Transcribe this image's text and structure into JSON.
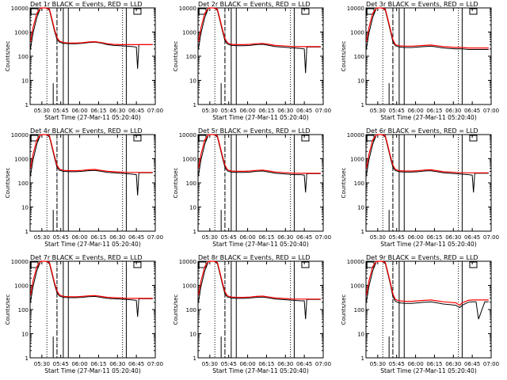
{
  "colors": {
    "events": "#000000",
    "lld": "#ff0000",
    "background": "#ffffff",
    "axes": "#000000"
  },
  "shared": {
    "xlabel": "Start Time (27-Mar-11 05:20:40)",
    "ylabel": "Counts/sec",
    "x_ticks": [
      "05:30",
      "05:45",
      "06:00",
      "06:15",
      "06:30",
      "06:45",
      "07:00"
    ],
    "y_ticks": [
      "1",
      "10",
      "100",
      "1000",
      "10000"
    ],
    "xlim": [
      "05:20:40",
      "07:00"
    ],
    "ylim": [
      1,
      10000
    ],
    "yscale": "log"
  },
  "chart_data": [
    {
      "type": "line",
      "title": "Det 1r BLACK = Events, RED = LLD",
      "x": [
        "05:21",
        "05:23",
        "05:26",
        "05:29",
        "05:33",
        "05:36",
        "05:38",
        "05:40",
        "05:42",
        "05:44",
        "05:47",
        "05:52",
        "05:57",
        "06:02",
        "06:07",
        "06:12",
        "06:17",
        "06:22",
        "06:27",
        "06:32",
        "06:37",
        "06:42",
        "06:45",
        "06:46",
        "06:47",
        "06:50",
        "06:55",
        "06:58"
      ],
      "series": [
        {
          "name": "Events",
          "color": "#000000",
          "values": [
            200,
            900,
            4000,
            10000,
            10000,
            8000,
            3000,
            1100,
            500,
            380,
            340,
            330,
            330,
            340,
            370,
            380,
            350,
            300,
            280,
            270,
            260,
            250,
            240,
            30,
            300,
            300,
            300,
            300
          ]
        },
        {
          "name": "LLD",
          "color": "#ff0000",
          "values": [
            400,
            1500,
            6000,
            10000,
            10000,
            9000,
            3500,
            1300,
            600,
            420,
            370,
            350,
            350,
            360,
            390,
            400,
            370,
            330,
            310,
            300,
            300,
            300,
            300,
            300,
            300,
            300,
            300,
            300
          ]
        }
      ],
      "dotted_x": [
        "05:34",
        "05:42",
        "06:34"
      ],
      "dashed_x": [
        "05:42"
      ],
      "solid_x": [
        "05:47",
        "05:51",
        "06:37"
      ],
      "dip_x": [
        "05:39"
      ]
    },
    {
      "type": "line",
      "title": "Det 2r BLACK = Events, RED = LLD",
      "x": [
        "05:21",
        "05:23",
        "05:26",
        "05:29",
        "05:33",
        "05:36",
        "05:38",
        "05:40",
        "05:42",
        "05:44",
        "05:47",
        "05:52",
        "05:57",
        "06:02",
        "06:07",
        "06:12",
        "06:17",
        "06:22",
        "06:27",
        "06:32",
        "06:37",
        "06:42",
        "06:45",
        "06:46",
        "06:47",
        "06:50",
        "06:55",
        "06:58"
      ],
      "series": [
        {
          "name": "Events",
          "color": "#000000",
          "values": [
            200,
            900,
            4000,
            10000,
            10000,
            8000,
            3000,
            1100,
            450,
            320,
            280,
            270,
            270,
            280,
            300,
            310,
            280,
            250,
            240,
            230,
            220,
            210,
            200,
            20,
            240,
            240,
            240,
            240
          ]
        },
        {
          "name": "LLD",
          "color": "#ff0000",
          "values": [
            400,
            1500,
            6000,
            10000,
            10000,
            9000,
            3500,
            1300,
            550,
            360,
            310,
            300,
            300,
            310,
            330,
            340,
            310,
            280,
            270,
            260,
            250,
            250,
            250,
            250,
            250,
            250,
            250,
            250
          ]
        }
      ],
      "dotted_x": [
        "05:34",
        "05:42",
        "06:34"
      ],
      "dashed_x": [
        "05:42"
      ],
      "solid_x": [
        "05:47",
        "05:51",
        "06:37"
      ],
      "dip_x": [
        "05:39"
      ]
    },
    {
      "type": "line",
      "title": "Det 3r BLACK = Events, RED = LLD",
      "x": [
        "05:21",
        "05:23",
        "05:26",
        "05:29",
        "05:33",
        "05:36",
        "05:38",
        "05:40",
        "05:42",
        "05:44",
        "05:47",
        "05:52",
        "05:57",
        "06:02",
        "06:07",
        "06:12",
        "06:17",
        "06:22",
        "06:27",
        "06:32",
        "06:37",
        "06:42",
        "06:45",
        "06:46",
        "06:47",
        "06:50",
        "06:55",
        "06:58"
      ],
      "series": [
        {
          "name": "Events",
          "color": "#000000",
          "values": [
            200,
            900,
            4000,
            10000,
            10000,
            8000,
            3000,
            1100,
            400,
            270,
            240,
            230,
            230,
            240,
            250,
            260,
            240,
            220,
            210,
            200,
            200,
            190,
            190,
            190,
            190,
            190,
            190,
            190
          ]
        },
        {
          "name": "LLD",
          "color": "#ff0000",
          "values": [
            400,
            1500,
            6000,
            10000,
            10000,
            9000,
            3500,
            1300,
            500,
            300,
            270,
            260,
            260,
            270,
            280,
            290,
            270,
            250,
            240,
            230,
            230,
            220,
            220,
            220,
            220,
            220,
            220,
            220
          ]
        }
      ],
      "dotted_x": [
        "05:34",
        "05:42",
        "06:34"
      ],
      "dashed_x": [
        "05:42"
      ],
      "solid_x": [
        "05:47",
        "05:51",
        "06:37"
      ],
      "dip_x": [
        "05:39"
      ]
    },
    {
      "type": "line",
      "title": "Det 4r BLACK = Events, RED = LLD",
      "x": [
        "05:21",
        "05:23",
        "05:26",
        "05:29",
        "05:33",
        "05:36",
        "05:38",
        "05:40",
        "05:42",
        "05:44",
        "05:47",
        "05:52",
        "05:57",
        "06:02",
        "06:07",
        "06:12",
        "06:17",
        "06:22",
        "06:27",
        "06:32",
        "06:37",
        "06:42",
        "06:45",
        "06:46",
        "06:47",
        "06:50",
        "06:55",
        "06:58"
      ],
      "series": [
        {
          "name": "Events",
          "color": "#000000",
          "values": [
            200,
            900,
            4000,
            10000,
            10000,
            8000,
            3000,
            1100,
            450,
            330,
            300,
            290,
            290,
            300,
            320,
            330,
            300,
            270,
            260,
            250,
            240,
            230,
            220,
            30,
            260,
            260,
            260,
            260
          ]
        },
        {
          "name": "LLD",
          "color": "#ff0000",
          "values": [
            400,
            1500,
            6000,
            10000,
            10000,
            9000,
            3500,
            1300,
            550,
            370,
            330,
            320,
            320,
            330,
            350,
            360,
            330,
            300,
            290,
            280,
            270,
            270,
            270,
            270,
            270,
            270,
            270,
            270
          ]
        }
      ],
      "dotted_x": [
        "05:34",
        "05:42",
        "06:34"
      ],
      "dashed_x": [
        "05:42"
      ],
      "solid_x": [
        "05:47",
        "05:51",
        "06:37"
      ],
      "dip_x": [
        "05:39"
      ]
    },
    {
      "type": "line",
      "title": "Det 5r BLACK = Events, RED = LLD",
      "x": [
        "05:21",
        "05:23",
        "05:26",
        "05:29",
        "05:33",
        "05:36",
        "05:38",
        "05:40",
        "05:42",
        "05:44",
        "05:47",
        "05:52",
        "05:57",
        "06:02",
        "06:07",
        "06:12",
        "06:17",
        "06:22",
        "06:27",
        "06:32",
        "06:37",
        "06:42",
        "06:45",
        "06:46",
        "06:47",
        "06:50",
        "06:55",
        "06:58"
      ],
      "series": [
        {
          "name": "Events",
          "color": "#000000",
          "values": [
            200,
            900,
            4000,
            10000,
            10000,
            8000,
            3000,
            1100,
            450,
            310,
            280,
            270,
            270,
            280,
            300,
            310,
            280,
            250,
            240,
            230,
            220,
            220,
            210,
            40,
            240,
            240,
            240,
            240
          ]
        },
        {
          "name": "LLD",
          "color": "#ff0000",
          "values": [
            400,
            1500,
            6000,
            10000,
            10000,
            9000,
            3500,
            1300,
            550,
            350,
            310,
            300,
            300,
            310,
            330,
            340,
            310,
            280,
            270,
            260,
            250,
            250,
            250,
            250,
            250,
            250,
            250,
            250
          ]
        }
      ],
      "dotted_x": [
        "05:34",
        "05:42",
        "06:34"
      ],
      "dashed_x": [
        "05:42"
      ],
      "solid_x": [
        "05:47",
        "05:51",
        "06:37"
      ],
      "dip_x": [
        "05:39"
      ]
    },
    {
      "type": "line",
      "title": "Det 6r BLACK = Events, RED = LLD",
      "x": [
        "05:21",
        "05:23",
        "05:26",
        "05:29",
        "05:33",
        "05:36",
        "05:38",
        "05:40",
        "05:42",
        "05:44",
        "05:47",
        "05:52",
        "05:57",
        "06:02",
        "06:07",
        "06:12",
        "06:17",
        "06:22",
        "06:27",
        "06:32",
        "06:37",
        "06:42",
        "06:45",
        "06:46",
        "06:47",
        "06:50",
        "06:55",
        "06:58"
      ],
      "series": [
        {
          "name": "Events",
          "color": "#000000",
          "values": [
            200,
            900,
            4000,
            10000,
            10000,
            8000,
            3000,
            1100,
            450,
            320,
            290,
            280,
            280,
            290,
            310,
            320,
            290,
            260,
            250,
            240,
            230,
            220,
            210,
            40,
            250,
            250,
            250,
            250
          ]
        },
        {
          "name": "LLD",
          "color": "#ff0000",
          "values": [
            400,
            1500,
            6000,
            10000,
            10000,
            9000,
            3500,
            1300,
            550,
            360,
            320,
            310,
            310,
            320,
            340,
            350,
            320,
            290,
            280,
            270,
            260,
            260,
            260,
            260,
            260,
            260,
            260,
            260
          ]
        }
      ],
      "dotted_x": [
        "05:34",
        "05:42",
        "06:34"
      ],
      "dashed_x": [
        "05:42"
      ],
      "solid_x": [
        "05:47",
        "05:51",
        "06:37"
      ],
      "dip_x": [
        "05:39"
      ]
    },
    {
      "type": "line",
      "title": "Det 7r BLACK = Events, RED = LLD",
      "x": [
        "05:21",
        "05:23",
        "05:26",
        "05:29",
        "05:33",
        "05:36",
        "05:38",
        "05:40",
        "05:42",
        "05:44",
        "05:47",
        "05:52",
        "05:57",
        "06:02",
        "06:07",
        "06:12",
        "06:17",
        "06:22",
        "06:27",
        "06:32",
        "06:37",
        "06:42",
        "06:45",
        "06:46",
        "06:47",
        "06:50",
        "06:55",
        "06:58"
      ],
      "series": [
        {
          "name": "Events",
          "color": "#000000",
          "values": [
            200,
            900,
            4000,
            10000,
            10000,
            8000,
            3000,
            1100,
            500,
            360,
            320,
            310,
            310,
            320,
            340,
            350,
            320,
            290,
            280,
            270,
            260,
            250,
            240,
            50,
            280,
            280,
            280,
            280
          ]
        },
        {
          "name": "LLD",
          "color": "#ff0000",
          "values": [
            400,
            1500,
            6000,
            10000,
            10000,
            9000,
            3500,
            1300,
            600,
            400,
            350,
            340,
            340,
            350,
            370,
            380,
            350,
            320,
            310,
            300,
            290,
            290,
            290,
            290,
            290,
            290,
            290,
            290
          ]
        }
      ],
      "dotted_x": [
        "05:34",
        "05:42",
        "06:34"
      ],
      "dashed_x": [
        "05:42"
      ],
      "solid_x": [
        "05:47",
        "05:51",
        "06:37"
      ],
      "dip_x": [
        "05:39"
      ]
    },
    {
      "type": "line",
      "title": "Det 8r BLACK = Events, RED = LLD",
      "x": [
        "05:21",
        "05:23",
        "05:26",
        "05:29",
        "05:33",
        "05:36",
        "05:38",
        "05:40",
        "05:42",
        "05:44",
        "05:47",
        "05:52",
        "05:57",
        "06:02",
        "06:07",
        "06:12",
        "06:17",
        "06:22",
        "06:27",
        "06:32",
        "06:37",
        "06:42",
        "06:45",
        "06:46",
        "06:47",
        "06:50",
        "06:55",
        "06:58"
      ],
      "series": [
        {
          "name": "Events",
          "color": "#000000",
          "values": [
            200,
            900,
            4000,
            10000,
            10000,
            8000,
            3000,
            1100,
            450,
            330,
            300,
            290,
            290,
            300,
            320,
            330,
            300,
            270,
            260,
            250,
            240,
            230,
            230,
            40,
            260,
            260,
            260,
            260
          ]
        },
        {
          "name": "LLD",
          "color": "#ff0000",
          "values": [
            400,
            1500,
            6000,
            10000,
            10000,
            9000,
            3500,
            1300,
            550,
            370,
            330,
            320,
            320,
            330,
            350,
            360,
            330,
            300,
            290,
            280,
            270,
            270,
            270,
            270,
            270,
            270,
            270,
            270
          ]
        }
      ],
      "dotted_x": [
        "05:34",
        "05:42",
        "06:34"
      ],
      "dashed_x": [
        "05:42"
      ],
      "solid_x": [
        "05:47",
        "05:51",
        "06:37"
      ],
      "dip_x": [
        "05:39"
      ]
    },
    {
      "type": "line",
      "title": "Det 9r BLACK = Events, RED = LLD",
      "x": [
        "05:21",
        "05:23",
        "05:26",
        "05:29",
        "05:33",
        "05:36",
        "05:38",
        "05:40",
        "05:42",
        "05:44",
        "05:47",
        "05:52",
        "05:57",
        "06:02",
        "06:07",
        "06:12",
        "06:17",
        "06:22",
        "06:27",
        "06:32",
        "06:35",
        "06:37",
        "06:40",
        "06:42",
        "06:45",
        "06:48",
        "06:50",
        "06:55",
        "06:58"
      ],
      "series": [
        {
          "name": "Events",
          "color": "#000000",
          "values": [
            200,
            900,
            4000,
            10000,
            10000,
            8000,
            3000,
            1100,
            350,
            220,
            190,
            180,
            180,
            190,
            200,
            210,
            190,
            170,
            160,
            150,
            120,
            150,
            180,
            200,
            210,
            210,
            40,
            210,
            210
          ]
        },
        {
          "name": "LLD",
          "color": "#ff0000",
          "values": [
            400,
            1500,
            6000,
            10000,
            10000,
            9000,
            3500,
            1300,
            450,
            260,
            230,
            220,
            220,
            230,
            240,
            250,
            230,
            210,
            200,
            190,
            150,
            190,
            220,
            240,
            250,
            250,
            250,
            250,
            250
          ]
        }
      ],
      "dotted_x": [
        "05:34",
        "05:42",
        "06:34"
      ],
      "dashed_x": [
        "05:42"
      ],
      "solid_x": [
        "05:47",
        "05:51",
        "06:37"
      ],
      "dip_x": [
        "05:39"
      ]
    }
  ]
}
